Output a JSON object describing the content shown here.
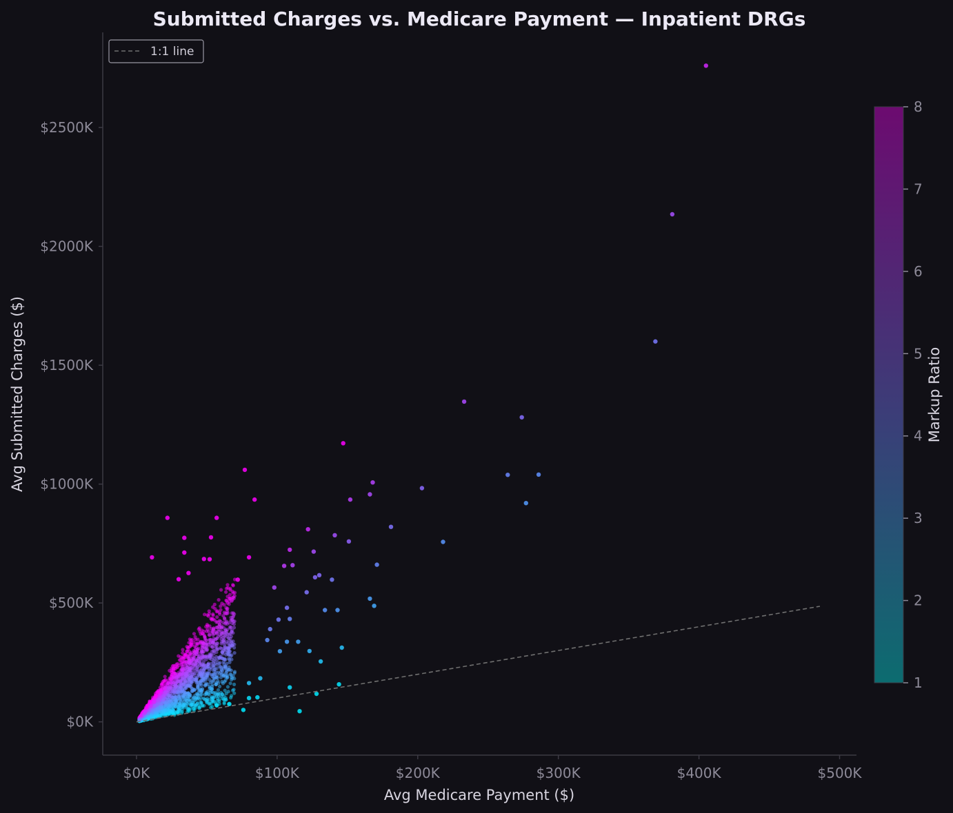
{
  "chart_data": {
    "type": "scatter",
    "title": "Submitted Charges vs. Medicare Payment — Inpatient DRGs",
    "xlabel": "Avg Medicare Payment ($)",
    "ylabel": "Avg Submitted Charges ($)",
    "xlim": [
      -24000,
      512000
    ],
    "ylim": [
      -140000,
      2900000
    ],
    "x_ticks": [
      0,
      100000,
      200000,
      300000,
      400000,
      500000
    ],
    "x_tick_labels": [
      "$0K",
      "$100K",
      "$200K",
      "$300K",
      "$400K",
      "$500K"
    ],
    "y_ticks": [
      0,
      500000,
      1000000,
      1500000,
      2000000,
      2500000
    ],
    "y_tick_labels": [
      "$0K",
      "$500K",
      "$1000K",
      "$1500K",
      "$2000K",
      "$2500K"
    ],
    "grid": false,
    "legend": {
      "placement": "top-left",
      "entries": [
        "1:1 line"
      ]
    },
    "reference_line": {
      "name": "1:1 line",
      "style": "dashed",
      "color": "#707070",
      "x": [
        0,
        486000
      ],
      "y": [
        0,
        486000
      ]
    },
    "colorbar": {
      "label": "Markup Ratio",
      "range": [
        1,
        8
      ],
      "ticks": [
        1,
        2,
        3,
        4,
        5,
        6,
        7,
        8
      ],
      "tick_labels": [
        "1",
        "2",
        "3",
        "4",
        "5",
        "6",
        "7",
        "8"
      ],
      "color_low": "#0c6c70",
      "color_mid": "#3a3f78",
      "color_high": "#6c0b70"
    },
    "point_color_low": "#00eaff",
    "point_color_high": "#ff00ff",
    "points": [
      [
        405000,
        2760000
      ],
      [
        381000,
        2135000
      ],
      [
        369000,
        1600000
      ],
      [
        233000,
        1347000
      ],
      [
        274000,
        1281000
      ],
      [
        147000,
        1172000
      ],
      [
        264000,
        1039000
      ],
      [
        286000,
        1040000
      ],
      [
        277000,
        920000
      ],
      [
        168000,
        1007000
      ],
      [
        203000,
        983000
      ],
      [
        166000,
        957000
      ],
      [
        152000,
        935000
      ],
      [
        77000,
        1060000
      ],
      [
        84000,
        935000
      ],
      [
        22000,
        858000
      ],
      [
        57000,
        858000
      ],
      [
        181000,
        820000
      ],
      [
        122000,
        810000
      ],
      [
        141000,
        785000
      ],
      [
        34000,
        774000
      ],
      [
        53000,
        776000
      ],
      [
        218000,
        757000
      ],
      [
        151000,
        759000
      ],
      [
        126000,
        716000
      ],
      [
        109000,
        724000
      ],
      [
        34000,
        712000
      ],
      [
        11000,
        692000
      ],
      [
        48000,
        685000
      ],
      [
        52000,
        684000
      ],
      [
        80000,
        692000
      ],
      [
        111000,
        659000
      ],
      [
        105000,
        656000
      ],
      [
        171000,
        661000
      ],
      [
        37000,
        626000
      ],
      [
        130000,
        617000
      ],
      [
        139000,
        598000
      ],
      [
        127000,
        608000
      ],
      [
        72000,
        598000
      ],
      [
        30000,
        600000
      ],
      [
        98000,
        565000
      ],
      [
        121000,
        545000
      ],
      [
        166000,
        518000
      ],
      [
        169000,
        488000
      ],
      [
        134000,
        470000
      ],
      [
        143000,
        470000
      ],
      [
        107000,
        480000
      ],
      [
        109000,
        433000
      ],
      [
        101000,
        430000
      ],
      [
        95000,
        390000
      ],
      [
        93000,
        344000
      ],
      [
        107000,
        337000
      ],
      [
        115000,
        337000
      ],
      [
        102000,
        297000
      ],
      [
        123000,
        298000
      ],
      [
        146000,
        312000
      ],
      [
        131000,
        254000
      ],
      [
        144000,
        158000
      ],
      [
        128000,
        118000
      ],
      [
        109000,
        145000
      ],
      [
        116000,
        45000
      ],
      [
        80000,
        100000
      ],
      [
        76000,
        50000
      ],
      [
        88000,
        183000
      ],
      [
        80000,
        163000
      ],
      [
        86000,
        103000
      ],
      [
        57000,
        70000
      ],
      [
        66000,
        75000
      ]
    ]
  }
}
